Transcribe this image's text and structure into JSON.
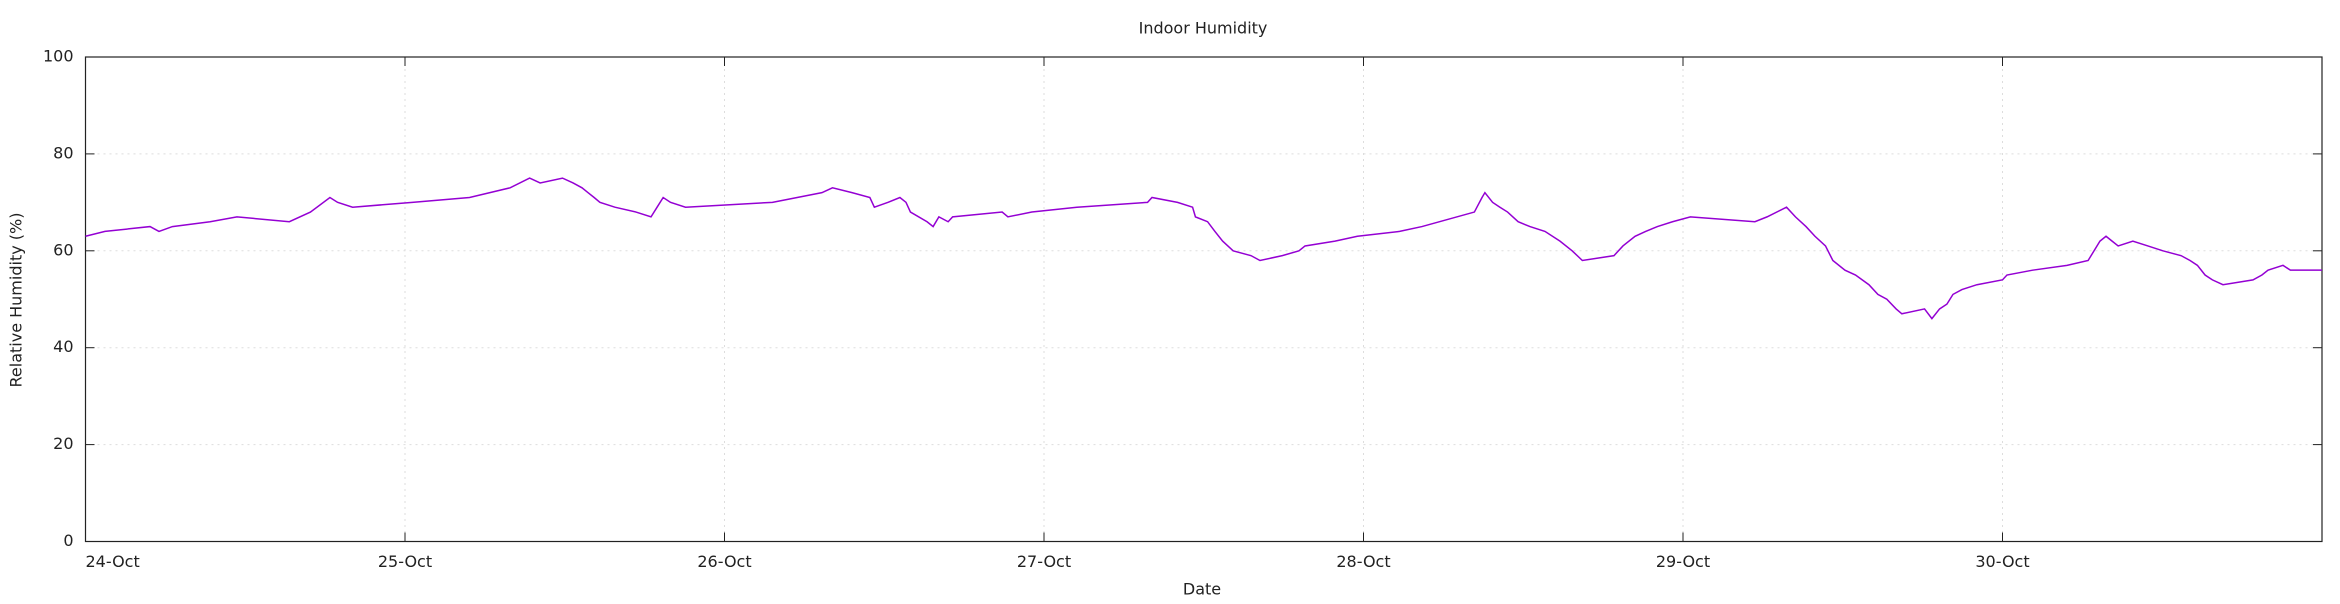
{
  "chart_data": {
    "type": "line",
    "title": "Indoor Humidity",
    "x_label": "Date",
    "y_label": "Relative Humidity (%)",
    "xlim": [
      24,
      31
    ],
    "ylim": [
      0,
      100
    ],
    "xticks": [
      {
        "value": 24,
        "label": "24-Oct"
      },
      {
        "value": 25,
        "label": "25-Oct"
      },
      {
        "value": 26,
        "label": "26-Oct"
      },
      {
        "value": 27,
        "label": "27-Oct"
      },
      {
        "value": 28,
        "label": "28-Oct"
      },
      {
        "value": 29,
        "label": "29-Oct"
      },
      {
        "value": 30,
        "label": "30-Oct"
      }
    ],
    "yticks": [
      0,
      20,
      40,
      60,
      80,
      100
    ],
    "grid": true,
    "series": [
      {
        "color": "#9400d3",
        "x": [
          24.0,
          24.061,
          24.202,
          24.23,
          24.272,
          24.39,
          24.474,
          24.638,
          24.704,
          24.765,
          24.789,
          24.836,
          25.023,
          25.202,
          25.329,
          25.39,
          25.423,
          25.493,
          25.526,
          25.554,
          25.573,
          25.592,
          25.61,
          25.657,
          25.723,
          25.77,
          25.789,
          25.808,
          25.831,
          25.878,
          26.15,
          26.305,
          26.338,
          26.399,
          26.455,
          26.469,
          26.512,
          26.549,
          26.568,
          26.582,
          26.634,
          26.653,
          26.671,
          26.7,
          26.714,
          26.869,
          26.887,
          26.962,
          27.103,
          27.324,
          27.338,
          27.418,
          27.465,
          27.474,
          27.512,
          27.535,
          27.559,
          27.592,
          27.648,
          27.676,
          27.746,
          27.798,
          27.817,
          27.911,
          27.981,
          28.113,
          28.183,
          28.347,
          28.371,
          28.38,
          28.404,
          28.427,
          28.451,
          28.484,
          28.521,
          28.568,
          28.615,
          28.653,
          28.685,
          28.784,
          28.812,
          28.85,
          28.883,
          28.92,
          28.967,
          29.023,
          29.225,
          29.263,
          29.324,
          29.352,
          29.385,
          29.413,
          29.446,
          29.469,
          29.507,
          29.54,
          29.582,
          29.61,
          29.638,
          29.667,
          29.685,
          29.756,
          29.779,
          29.803,
          29.826,
          29.845,
          29.873,
          29.92,
          30.0,
          30.014,
          30.094,
          30.202,
          30.268,
          30.305,
          30.324,
          30.343,
          30.362,
          30.408,
          30.455,
          30.502,
          30.559,
          30.587,
          30.61,
          30.634,
          30.657,
          30.69,
          30.784,
          30.812,
          30.831,
          30.878,
          30.901,
          31.0
        ],
        "values": [
          63,
          64,
          65,
          64,
          65,
          66,
          67,
          66,
          68,
          71,
          70,
          69,
          70,
          71,
          73,
          75,
          74,
          75,
          74,
          73,
          72,
          71,
          70,
          69,
          68,
          67,
          69,
          71,
          70,
          69,
          70,
          72,
          73,
          72,
          71,
          69,
          70,
          71,
          70,
          68,
          66,
          65,
          67,
          66,
          67,
          68,
          67,
          68,
          69,
          70,
          71,
          70,
          69,
          67,
          66,
          64,
          62,
          60,
          59,
          58,
          59,
          60,
          61,
          62,
          63,
          64,
          65,
          68,
          71,
          72,
          70,
          69,
          68,
          66,
          65,
          64,
          62,
          60,
          58,
          59,
          61,
          63,
          64,
          65,
          66,
          67,
          66,
          67,
          69,
          67,
          65,
          63,
          61,
          58,
          56,
          55,
          53,
          51,
          50,
          48,
          47,
          48,
          46,
          48,
          49,
          51,
          52,
          53,
          54,
          55,
          56,
          57,
          58,
          62,
          63,
          62,
          61,
          62,
          61,
          60,
          59,
          58,
          57,
          55,
          54,
          53,
          54,
          55,
          56,
          57,
          56,
          56
        ]
      }
    ]
  }
}
